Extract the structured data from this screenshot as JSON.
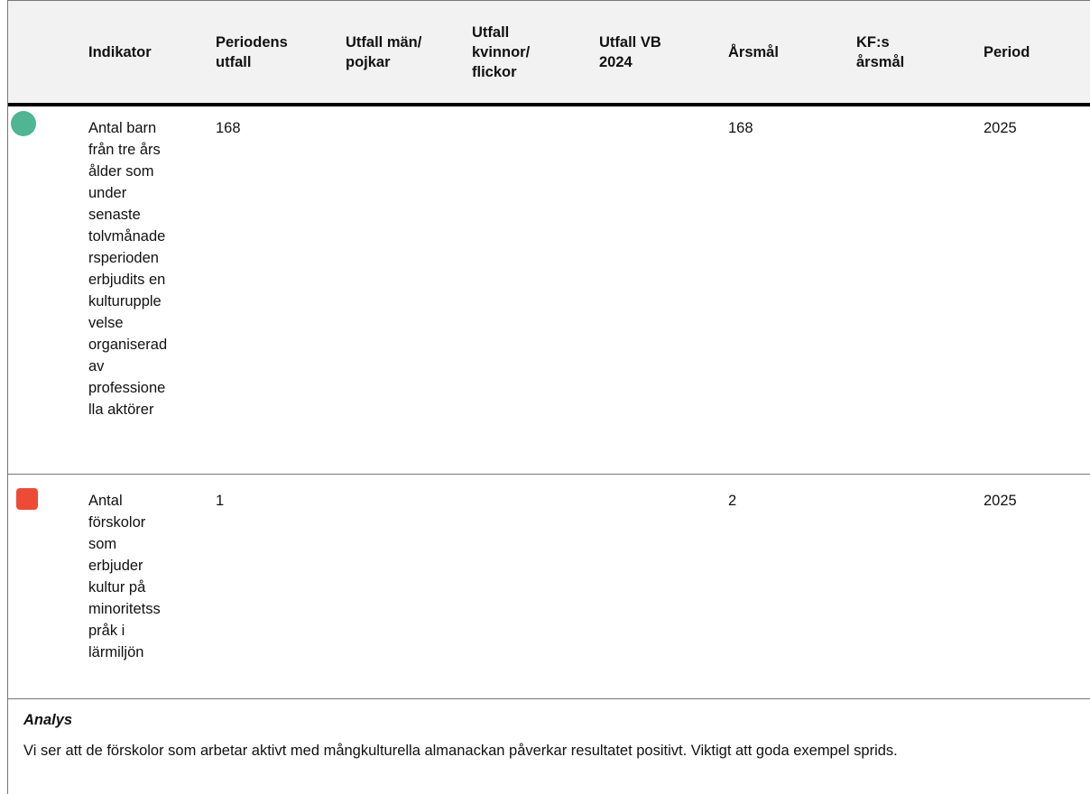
{
  "table": {
    "headers": {
      "status": "",
      "indikator": "Indikator",
      "periodens_utfall": "Periodens\nutfall",
      "utfall_man": "Utfall män/\npojkar",
      "utfall_kvinnor": "Utfall\nkvinnor/\nflickor",
      "utfall_vb": "Utfall VB\n2024",
      "arsmal": "Årsmål",
      "kf_arsmal": "KF:s\nårsmål",
      "period": "Period"
    },
    "rows": [
      {
        "status": "green",
        "indikator": "Antal barn\nfrån tre års\nålder som\nunder\nsenaste\ntolvmånade\nrsperioden\nerbjudits en\nkulturupple\nvelse\norganiserad\nav\nprofessione\nlla aktörer",
        "periodens_utfall": "168",
        "utfall_man": "",
        "utfall_kvinnor": "",
        "utfall_vb": "",
        "arsmal": "168",
        "kf_arsmal": "",
        "period": "2025"
      },
      {
        "status": "red",
        "indikator": "Antal\nförskolor\nsom\nerbjuder\nkultur på\nminoritetss\npråk i\nlärmiljön",
        "periodens_utfall": "1",
        "utfall_man": "",
        "utfall_kvinnor": "",
        "utfall_vb": "",
        "arsmal": "2",
        "kf_arsmal": "",
        "period": "2025"
      }
    ]
  },
  "analysis": {
    "title": "Analys",
    "text": "Vi ser att de förskolor som arbetar aktivt med mångkulturella almanackan påverkar resultatet positivt. Viktigt att goda exempel sprids."
  },
  "colors": {
    "green_status": "#4fb592",
    "red_status": "#ee4b36",
    "header_bg": "#f2f2f2"
  }
}
